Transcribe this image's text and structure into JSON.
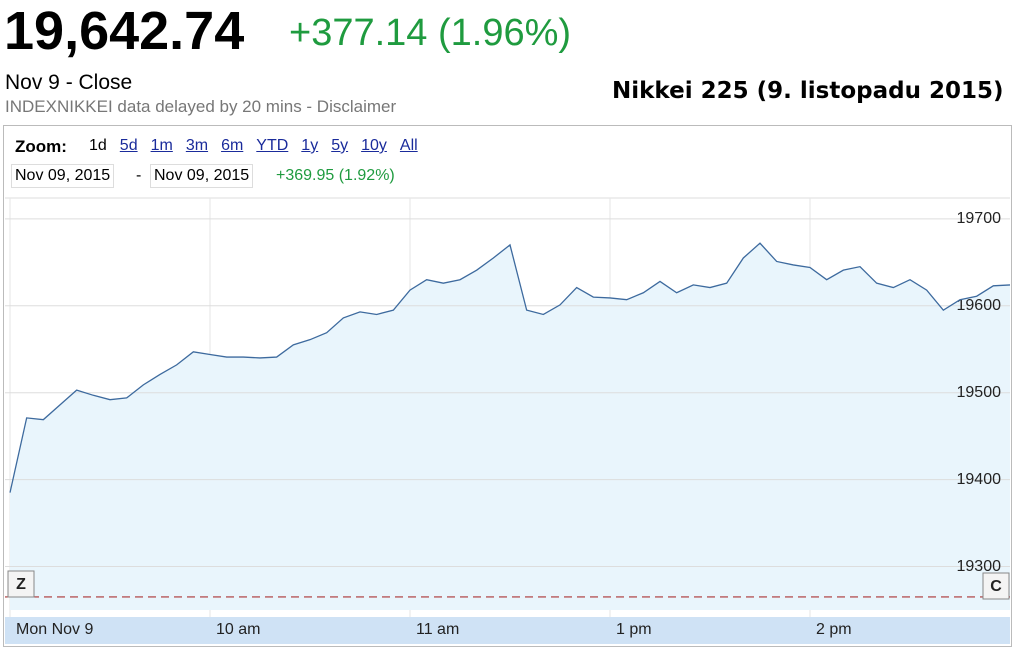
{
  "header": {
    "price": "19,642.74",
    "change": "+377.14 (1.96%)",
    "date_label": "Nov 9 - Close",
    "source": "INDEXNIKKEI data delayed by 20 mins - Disclaimer"
  },
  "caption": "Nikkei 225 (9. listopadu 2015)",
  "toolbar": {
    "zoom_label": "Zoom:",
    "zoom_options": [
      "1d",
      "5d",
      "1m",
      "3m",
      "6m",
      "YTD",
      "1y",
      "5y",
      "10y",
      "All"
    ],
    "from": "Nov 09, 2015",
    "separator": "-",
    "to": "Nov 09, 2015",
    "range_change": "+369.95 (1.92%)"
  },
  "buttons": [
    "Z",
    "C"
  ],
  "chart_data": {
    "type": "area",
    "color": "#3d6a9e",
    "fill": "#e9f5fc",
    "values": [
      19385,
      19471,
      19469,
      19486,
      19503,
      19497,
      19492,
      19494,
      19509,
      19521,
      19532,
      19547,
      19544,
      19541,
      19541,
      19540,
      19541,
      19555,
      19561,
      19569,
      19586,
      19593,
      19590,
      19595,
      19618,
      19630,
      19626,
      19630,
      19641,
      19655,
      19670,
      19595,
      19590,
      19601,
      19621,
      19610,
      19609,
      19607,
      19615,
      19628,
      19615,
      19624,
      19621,
      19626,
      19655,
      19672,
      19651,
      19647,
      19644,
      19630,
      19641,
      19645,
      19626,
      19621,
      19630,
      19618,
      19595,
      19607,
      19611,
      19623,
      19624
    ],
    "xlim": [
      0,
      60
    ],
    "xticks": [
      {
        "value": 0,
        "label": "Mon Nov 9"
      },
      {
        "value": 12,
        "label": "10 am"
      },
      {
        "value": 24,
        "label": "11 am"
      },
      {
        "value": 36,
        "label": "1 pm"
      },
      {
        "value": 48,
        "label": "2 pm"
      }
    ],
    "ylim": [
      19250,
      19724
    ],
    "yticks": [
      19300,
      19400,
      19500,
      19600,
      19700
    ],
    "grid": true,
    "reference_line": 19265,
    "reference_color": "#a33"
  }
}
